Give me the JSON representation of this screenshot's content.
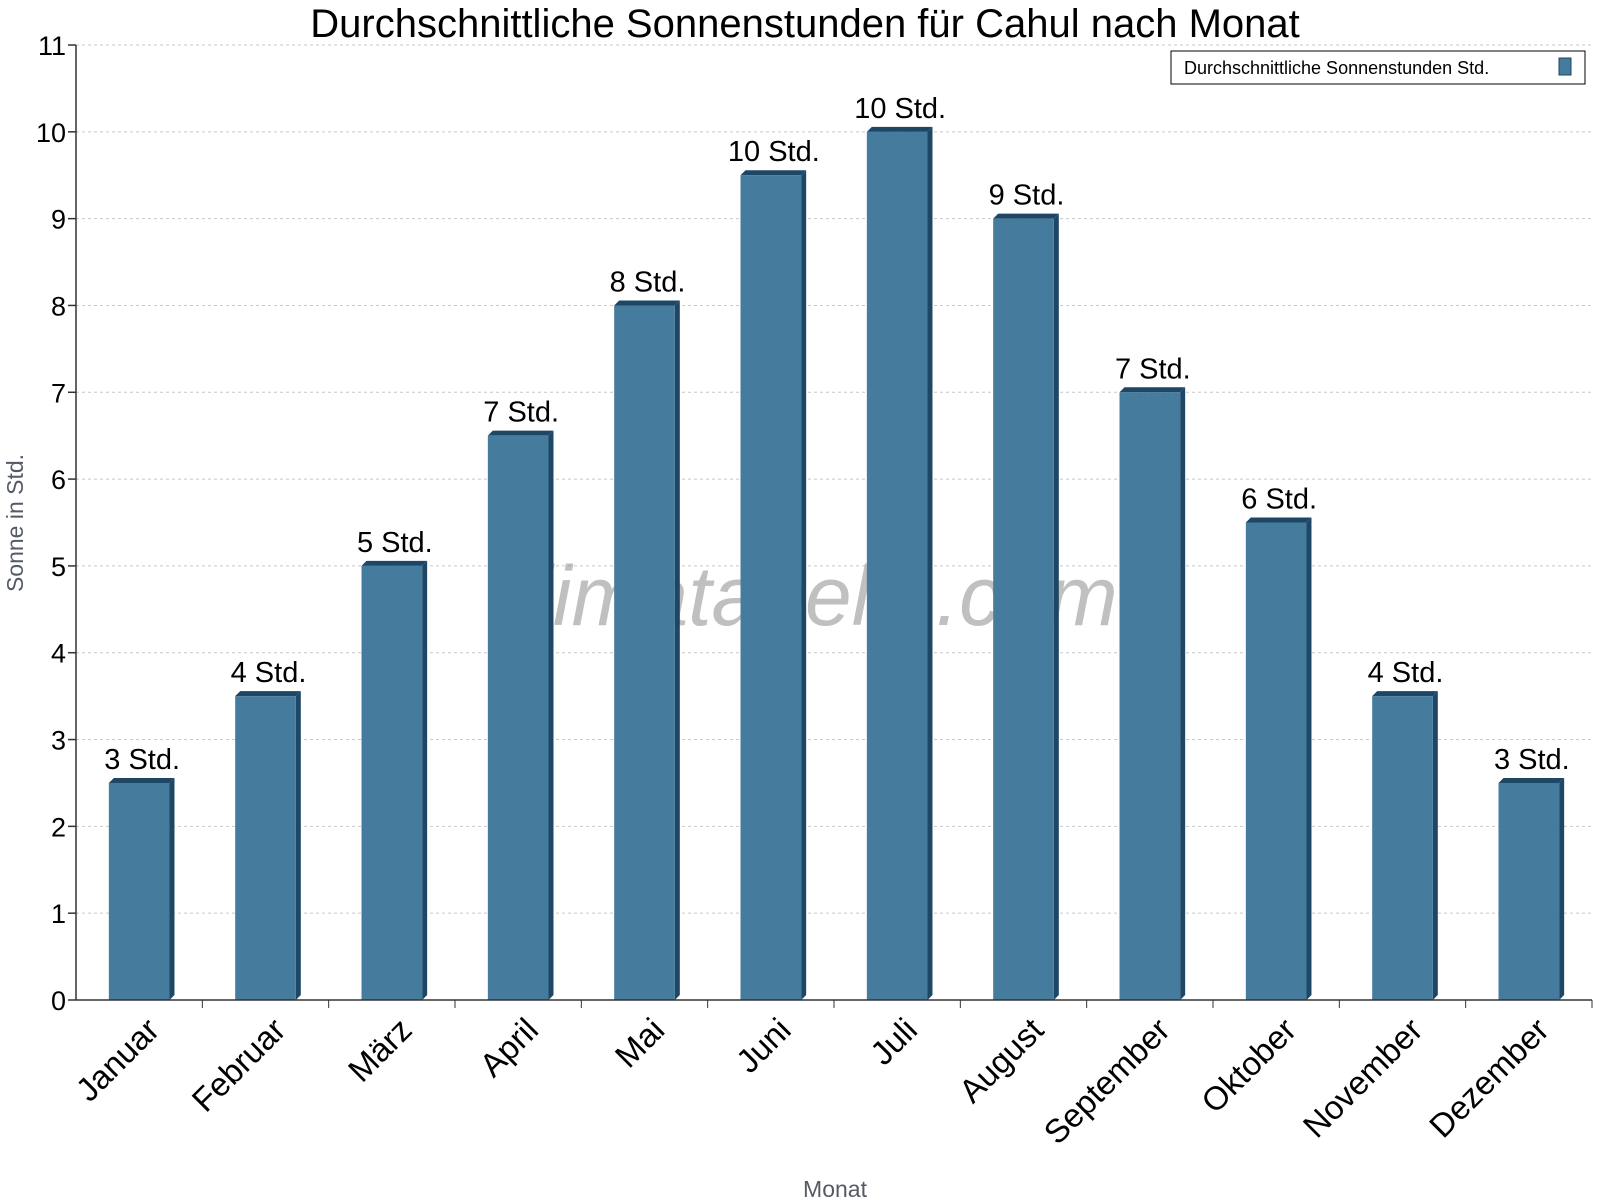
{
  "chart_data": {
    "type": "bar",
    "title": "Durchschnittliche Sonnenstunden für Cahul nach Monat",
    "xlabel": "Monat",
    "ylabel": "Sonne in Std.",
    "ylim": [
      0,
      11
    ],
    "yticks": [
      "0",
      "1",
      "2",
      "3",
      "4",
      "5",
      "6",
      "7",
      "8",
      "9",
      "10",
      "11"
    ],
    "grid": true,
    "legend_position": "top-right",
    "categories": [
      "Januar",
      "Februar",
      "März",
      "April",
      "Mai",
      "Juni",
      "Juli",
      "August",
      "September",
      "Oktober",
      "November",
      "Dezember"
    ],
    "series": [
      {
        "name": "Durchschnittliche Sonnenstunden Std.",
        "color": "#457b9d",
        "values": [
          2.5,
          3.5,
          5.0,
          6.5,
          8.0,
          9.5,
          10.0,
          9.0,
          7.0,
          5.5,
          3.5,
          2.5
        ],
        "labels": [
          "3 Std.",
          "4 Std.",
          "5 Std.",
          "7 Std.",
          "8 Std.",
          "10 Std.",
          "10 Std.",
          "9 Std.",
          "7 Std.",
          "6 Std.",
          "4 Std.",
          "3 Std."
        ]
      }
    ],
    "watermark": "klimatabelle.com"
  }
}
